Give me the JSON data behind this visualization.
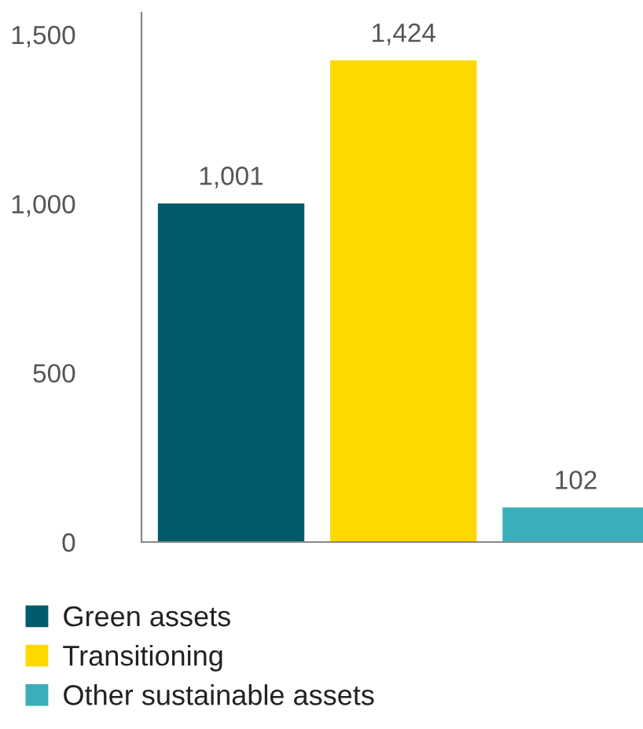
{
  "chart_data": {
    "type": "bar",
    "categories": [
      null,
      null,
      null
    ],
    "series": [
      {
        "name": "Green assets",
        "color": "#005a6b",
        "values": [
          1001,
          null,
          null
        ]
      },
      {
        "name": "Transitioning",
        "color": "#ffd800",
        "values": [
          null,
          1424,
          null
        ]
      },
      {
        "name": "Other sustainable assets",
        "color": "#3aafbb",
        "values": [
          null,
          null,
          102
        ]
      }
    ],
    "ylim": [
      0,
      1565
    ],
    "yticks": [
      0,
      {
        "value": 500,
        "label": "500"
      },
      {
        "value": 1000,
        "label": "1,000"
      },
      {
        "value": 1500,
        "label": "1,500"
      }
    ],
    "value_labels": [
      "1,001",
      "1,424",
      "102"
    ],
    "grid": false,
    "legend": "bottom",
    "tick_labels": "y"
  }
}
